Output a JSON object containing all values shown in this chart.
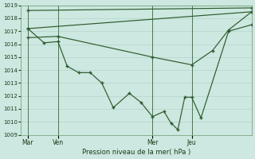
{
  "bg_color": "#cce8e0",
  "grid_color": "#b8d8d0",
  "line_color": "#2d5a2d",
  "marker_color": "#2d5a2d",
  "xlabel": "Pression niveau de la mer( hPa )",
  "ylim": [
    1009,
    1019
  ],
  "yticks": [
    1009,
    1010,
    1011,
    1012,
    1013,
    1014,
    1015,
    1016,
    1017,
    1018,
    1019
  ],
  "xlim": [
    0,
    100
  ],
  "xtick_positions": [
    3,
    16,
    57,
    74
  ],
  "xtick_labels": [
    "Mar",
    "Ven",
    "Mer",
    "Jeu"
  ],
  "vline_positions": [
    3,
    16,
    57,
    74
  ],
  "series": [
    {
      "x": [
        3,
        100
      ],
      "y": [
        1018.6,
        1018.8
      ],
      "marker": "+"
    },
    {
      "x": [
        3,
        100
      ],
      "y": [
        1017.2,
        1018.5
      ],
      "marker": "+"
    },
    {
      "x": [
        3,
        16,
        57,
        74,
        83,
        90,
        100
      ],
      "y": [
        1016.5,
        1016.6,
        1015.0,
        1014.4,
        1015.5,
        1017.1,
        1018.5
      ],
      "marker": "+"
    },
    {
      "x": [
        3,
        10,
        16,
        20,
        25,
        30,
        35,
        40,
        47,
        52,
        57,
        62,
        65,
        68,
        71,
        74,
        78,
        90,
        100
      ],
      "y": [
        1017.2,
        1016.1,
        1016.2,
        1014.3,
        1013.8,
        1013.8,
        1013.0,
        1011.1,
        1012.2,
        1011.5,
        1010.4,
        1010.8,
        1009.9,
        1009.4,
        1011.9,
        1011.9,
        1010.3,
        1017.0,
        1017.5
      ],
      "marker": "+"
    }
  ]
}
